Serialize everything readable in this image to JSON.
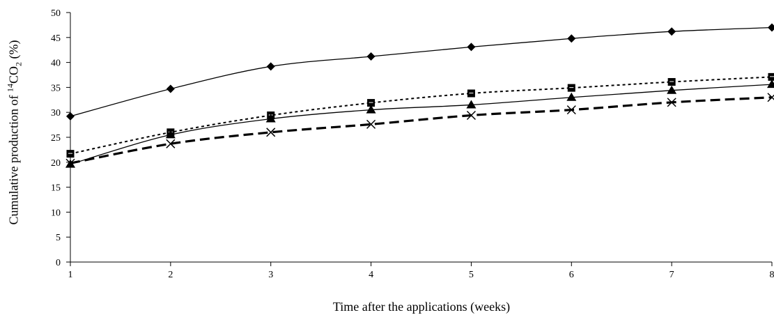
{
  "chart_data": {
    "type": "line",
    "title": "",
    "xlabel": "Time after the applications (weeks)",
    "ylabel": {
      "prefix": "Cumulative production of ",
      "sup": "14",
      "main": "CO",
      "sub": "2",
      "suffix": " (%)"
    },
    "x": [
      1,
      2,
      3,
      4,
      5,
      6,
      7,
      8
    ],
    "xlim": [
      1,
      8
    ],
    "ylim": [
      0,
      50
    ],
    "yticks": [
      0,
      5,
      10,
      15,
      20,
      25,
      30,
      35,
      40,
      45,
      50
    ],
    "xticks": [
      1,
      2,
      3,
      4,
      5,
      6,
      7,
      8
    ],
    "grid": false,
    "legend": "none",
    "series": [
      {
        "values": [
          29.2,
          34.7,
          39.2,
          41.2,
          43.1,
          44.8,
          46.2,
          47.0
        ],
        "marker": "diamond",
        "line": "solid",
        "color": "#000000"
      },
      {
        "values": [
          21.7,
          26.0,
          29.4,
          31.9,
          33.8,
          34.9,
          36.1,
          37.1
        ],
        "marker": "square",
        "line": "dotted",
        "color": "#000000"
      },
      {
        "values": [
          19.6,
          25.5,
          28.7,
          30.5,
          31.5,
          33.0,
          34.4,
          35.6
        ],
        "marker": "triangle",
        "line": "solid",
        "color": "#000000"
      },
      {
        "values": [
          19.8,
          23.7,
          26.0,
          27.6,
          29.4,
          30.5,
          32.0,
          33.0
        ],
        "marker": "x",
        "line": "dashed",
        "color": "#000000"
      }
    ]
  }
}
